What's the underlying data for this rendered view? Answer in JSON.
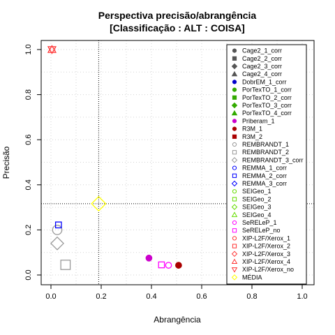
{
  "chart_data": {
    "type": "scatter",
    "title": "Perspectiva precisão/abrangência",
    "subtitle": "[Classificação : ALT : COISA]",
    "xlabel": "Abrangência",
    "ylabel": "Precisão",
    "xlim": [
      0,
      1.0
    ],
    "ylim": [
      0,
      1.0
    ],
    "xticks": [
      "0.0",
      "0.2",
      "0.4",
      "0.6",
      "0.8",
      "1.0"
    ],
    "yticks": [
      "0.0",
      "0.2",
      "0.4",
      "0.6",
      "0.8",
      "1.0"
    ],
    "grid": true,
    "legend_position": "right",
    "reference_lines": {
      "x": 0.19,
      "y": 0.316
    },
    "series": [
      {
        "name": "Cage2_1_corr",
        "shape": "circle",
        "color": "#555555",
        "fill": true,
        "points": []
      },
      {
        "name": "Cage2_2_corr",
        "shape": "square",
        "color": "#555555",
        "fill": true,
        "points": []
      },
      {
        "name": "Cage2_3_corr",
        "shape": "diamond",
        "color": "#555555",
        "fill": true,
        "points": []
      },
      {
        "name": "Cage2_4_corr",
        "shape": "triangle",
        "color": "#555555",
        "fill": true,
        "points": []
      },
      {
        "name": "DobrEM_1_corr",
        "shape": "circle",
        "color": "#0000cc",
        "fill": true,
        "points": []
      },
      {
        "name": "PorTexTO_1_corr",
        "shape": "circle",
        "color": "#33aa00",
        "fill": true,
        "points": []
      },
      {
        "name": "PorTexTO_2_corr",
        "shape": "square",
        "color": "#33aa00",
        "fill": true,
        "points": []
      },
      {
        "name": "PorTexTO_3_corr",
        "shape": "diamond",
        "color": "#33aa00",
        "fill": true,
        "points": []
      },
      {
        "name": "PorTexTO_4_corr",
        "shape": "triangle",
        "color": "#33aa00",
        "fill": true,
        "points": []
      },
      {
        "name": "Priberam_1",
        "shape": "circle",
        "color": "#cc00cc",
        "fill": true,
        "points": [
          {
            "x": 0.39,
            "y": 0.075,
            "size": 1.0
          }
        ]
      },
      {
        "name": "R3M_1",
        "shape": "circle",
        "color": "#aa0000",
        "fill": true,
        "points": [
          {
            "x": 0.508,
            "y": 0.043,
            "size": 1.0
          }
        ]
      },
      {
        "name": "R3M_2",
        "shape": "square",
        "color": "#aa0000",
        "fill": true,
        "points": []
      },
      {
        "name": "REMBRANDT_1",
        "shape": "circle",
        "color": "#999999",
        "fill": false,
        "points": [
          {
            "x": 0.025,
            "y": 0.2,
            "size": 1.6
          }
        ]
      },
      {
        "name": "REMBRANDT_2",
        "shape": "square",
        "color": "#999999",
        "fill": false,
        "points": [
          {
            "x": 0.058,
            "y": 0.045,
            "size": 1.6
          }
        ]
      },
      {
        "name": "REMBRANDT_3_corr",
        "shape": "diamond",
        "color": "#999999",
        "fill": false,
        "points": [
          {
            "x": 0.025,
            "y": 0.14,
            "size": 1.6
          }
        ]
      },
      {
        "name": "REMMA_1_corr",
        "shape": "circle",
        "color": "#0000ff",
        "fill": false,
        "points": []
      },
      {
        "name": "REMMA_2_corr",
        "shape": "square",
        "color": "#0000ff",
        "fill": false,
        "points": [
          {
            "x": 0.03,
            "y": 0.222,
            "size": 1.0
          }
        ]
      },
      {
        "name": "REMMA_3_corr",
        "shape": "diamond",
        "color": "#0000ff",
        "fill": false,
        "points": []
      },
      {
        "name": "SEIGeo_1",
        "shape": "circle",
        "color": "#66dd00",
        "fill": false,
        "points": []
      },
      {
        "name": "SEIGeo_2",
        "shape": "square",
        "color": "#66dd00",
        "fill": false,
        "points": []
      },
      {
        "name": "SEIGeo_3",
        "shape": "diamond",
        "color": "#66dd00",
        "fill": false,
        "points": []
      },
      {
        "name": "SEIGeo_4",
        "shape": "triangle",
        "color": "#66dd00",
        "fill": false,
        "points": []
      },
      {
        "name": "SeRELeP_1",
        "shape": "circle",
        "color": "#ff00ff",
        "fill": false,
        "points": [
          {
            "x": 0.468,
            "y": 0.043,
            "size": 1.0
          }
        ]
      },
      {
        "name": "SeRELeP_no",
        "shape": "square",
        "color": "#ff00ff",
        "fill": false,
        "points": [
          {
            "x": 0.44,
            "y": 0.045,
            "size": 1.0
          }
        ]
      },
      {
        "name": "XIP-L2F/Xerox_1",
        "shape": "circle",
        "color": "#ff3333",
        "fill": false,
        "points": []
      },
      {
        "name": "XIP-L2F/Xerox_2",
        "shape": "square",
        "color": "#ff3333",
        "fill": false,
        "points": []
      },
      {
        "name": "XIP-L2F/Xerox_3",
        "shape": "diamond",
        "color": "#ff3333",
        "fill": false,
        "points": []
      },
      {
        "name": "XIP-L2F/Xerox_4",
        "shape": "triangle",
        "color": "#ff3333",
        "fill": false,
        "points": [
          {
            "x": 0.004,
            "y": 1.0,
            "size": 1.0
          }
        ]
      },
      {
        "name": "XIP-L2F/Xerox_no",
        "shape": "triangle-down",
        "color": "#ff3333",
        "fill": false,
        "points": [
          {
            "x": 0.004,
            "y": 1.0,
            "size": 1.0
          }
        ]
      },
      {
        "name": "MÉDIA",
        "shape": "diamond",
        "color": "#ffff00",
        "fill": false,
        "points": [
          {
            "x": 0.19,
            "y": 0.316,
            "size": 1.8
          }
        ]
      }
    ]
  }
}
